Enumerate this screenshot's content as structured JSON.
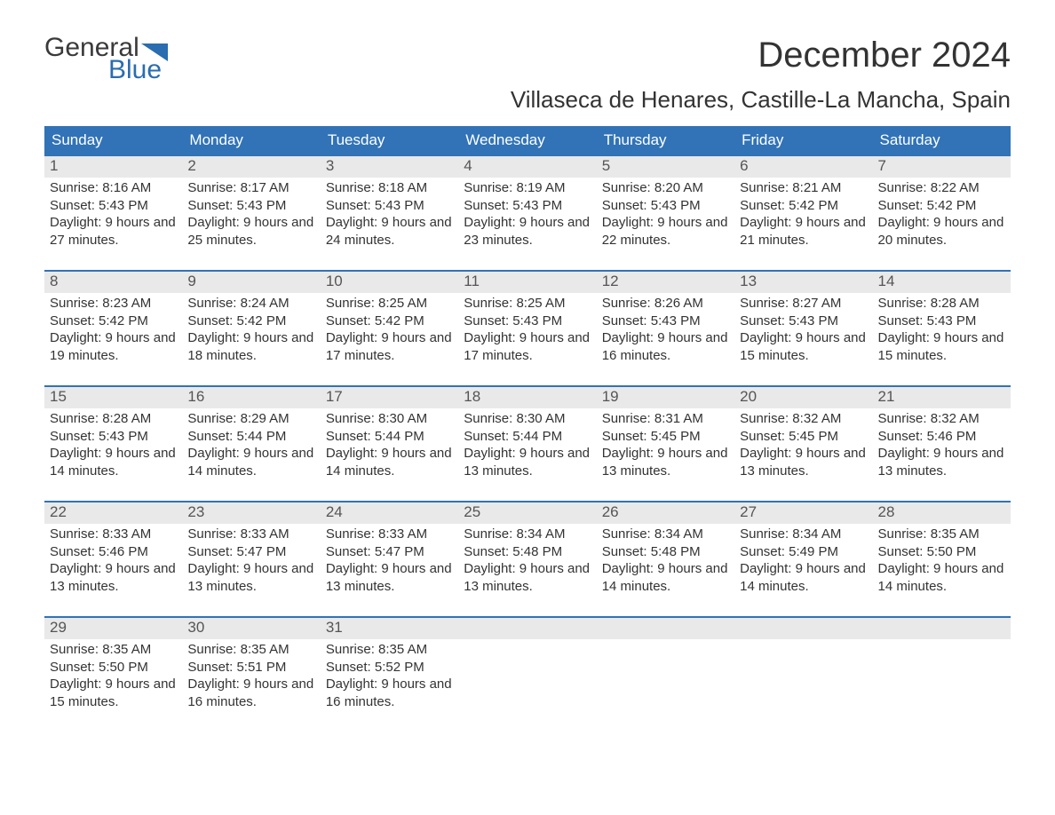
{
  "logo": {
    "text_top": "General",
    "text_bottom": "Blue"
  },
  "colors": {
    "header_bg": "#3173b6",
    "header_text": "#ffffff",
    "day_num_bg": "#e9e9e9",
    "logo_gray": "#3a3a3a",
    "logo_blue": "#2a6db0",
    "row_border": "#3173b6"
  },
  "title": "December 2024",
  "location": "Villaseca de Henares, Castille-La Mancha, Spain",
  "weekdays": [
    "Sunday",
    "Monday",
    "Tuesday",
    "Wednesday",
    "Thursday",
    "Friday",
    "Saturday"
  ],
  "weeks": [
    [
      {
        "n": "1",
        "sunrise": "Sunrise: 8:16 AM",
        "sunset": "Sunset: 5:43 PM",
        "daylight": "Daylight: 9 hours and 27 minutes."
      },
      {
        "n": "2",
        "sunrise": "Sunrise: 8:17 AM",
        "sunset": "Sunset: 5:43 PM",
        "daylight": "Daylight: 9 hours and 25 minutes."
      },
      {
        "n": "3",
        "sunrise": "Sunrise: 8:18 AM",
        "sunset": "Sunset: 5:43 PM",
        "daylight": "Daylight: 9 hours and 24 minutes."
      },
      {
        "n": "4",
        "sunrise": "Sunrise: 8:19 AM",
        "sunset": "Sunset: 5:43 PM",
        "daylight": "Daylight: 9 hours and 23 minutes."
      },
      {
        "n": "5",
        "sunrise": "Sunrise: 8:20 AM",
        "sunset": "Sunset: 5:43 PM",
        "daylight": "Daylight: 9 hours and 22 minutes."
      },
      {
        "n": "6",
        "sunrise": "Sunrise: 8:21 AM",
        "sunset": "Sunset: 5:42 PM",
        "daylight": "Daylight: 9 hours and 21 minutes."
      },
      {
        "n": "7",
        "sunrise": "Sunrise: 8:22 AM",
        "sunset": "Sunset: 5:42 PM",
        "daylight": "Daylight: 9 hours and 20 minutes."
      }
    ],
    [
      {
        "n": "8",
        "sunrise": "Sunrise: 8:23 AM",
        "sunset": "Sunset: 5:42 PM",
        "daylight": "Daylight: 9 hours and 19 minutes."
      },
      {
        "n": "9",
        "sunrise": "Sunrise: 8:24 AM",
        "sunset": "Sunset: 5:42 PM",
        "daylight": "Daylight: 9 hours and 18 minutes."
      },
      {
        "n": "10",
        "sunrise": "Sunrise: 8:25 AM",
        "sunset": "Sunset: 5:42 PM",
        "daylight": "Daylight: 9 hours and 17 minutes."
      },
      {
        "n": "11",
        "sunrise": "Sunrise: 8:25 AM",
        "sunset": "Sunset: 5:43 PM",
        "daylight": "Daylight: 9 hours and 17 minutes."
      },
      {
        "n": "12",
        "sunrise": "Sunrise: 8:26 AM",
        "sunset": "Sunset: 5:43 PM",
        "daylight": "Daylight: 9 hours and 16 minutes."
      },
      {
        "n": "13",
        "sunrise": "Sunrise: 8:27 AM",
        "sunset": "Sunset: 5:43 PM",
        "daylight": "Daylight: 9 hours and 15 minutes."
      },
      {
        "n": "14",
        "sunrise": "Sunrise: 8:28 AM",
        "sunset": "Sunset: 5:43 PM",
        "daylight": "Daylight: 9 hours and 15 minutes."
      }
    ],
    [
      {
        "n": "15",
        "sunrise": "Sunrise: 8:28 AM",
        "sunset": "Sunset: 5:43 PM",
        "daylight": "Daylight: 9 hours and 14 minutes."
      },
      {
        "n": "16",
        "sunrise": "Sunrise: 8:29 AM",
        "sunset": "Sunset: 5:44 PM",
        "daylight": "Daylight: 9 hours and 14 minutes."
      },
      {
        "n": "17",
        "sunrise": "Sunrise: 8:30 AM",
        "sunset": "Sunset: 5:44 PM",
        "daylight": "Daylight: 9 hours and 14 minutes."
      },
      {
        "n": "18",
        "sunrise": "Sunrise: 8:30 AM",
        "sunset": "Sunset: 5:44 PM",
        "daylight": "Daylight: 9 hours and 13 minutes."
      },
      {
        "n": "19",
        "sunrise": "Sunrise: 8:31 AM",
        "sunset": "Sunset: 5:45 PM",
        "daylight": "Daylight: 9 hours and 13 minutes."
      },
      {
        "n": "20",
        "sunrise": "Sunrise: 8:32 AM",
        "sunset": "Sunset: 5:45 PM",
        "daylight": "Daylight: 9 hours and 13 minutes."
      },
      {
        "n": "21",
        "sunrise": "Sunrise: 8:32 AM",
        "sunset": "Sunset: 5:46 PM",
        "daylight": "Daylight: 9 hours and 13 minutes."
      }
    ],
    [
      {
        "n": "22",
        "sunrise": "Sunrise: 8:33 AM",
        "sunset": "Sunset: 5:46 PM",
        "daylight": "Daylight: 9 hours and 13 minutes."
      },
      {
        "n": "23",
        "sunrise": "Sunrise: 8:33 AM",
        "sunset": "Sunset: 5:47 PM",
        "daylight": "Daylight: 9 hours and 13 minutes."
      },
      {
        "n": "24",
        "sunrise": "Sunrise: 8:33 AM",
        "sunset": "Sunset: 5:47 PM",
        "daylight": "Daylight: 9 hours and 13 minutes."
      },
      {
        "n": "25",
        "sunrise": "Sunrise: 8:34 AM",
        "sunset": "Sunset: 5:48 PM",
        "daylight": "Daylight: 9 hours and 13 minutes."
      },
      {
        "n": "26",
        "sunrise": "Sunrise: 8:34 AM",
        "sunset": "Sunset: 5:48 PM",
        "daylight": "Daylight: 9 hours and 14 minutes."
      },
      {
        "n": "27",
        "sunrise": "Sunrise: 8:34 AM",
        "sunset": "Sunset: 5:49 PM",
        "daylight": "Daylight: 9 hours and 14 minutes."
      },
      {
        "n": "28",
        "sunrise": "Sunrise: 8:35 AM",
        "sunset": "Sunset: 5:50 PM",
        "daylight": "Daylight: 9 hours and 14 minutes."
      }
    ],
    [
      {
        "n": "29",
        "sunrise": "Sunrise: 8:35 AM",
        "sunset": "Sunset: 5:50 PM",
        "daylight": "Daylight: 9 hours and 15 minutes."
      },
      {
        "n": "30",
        "sunrise": "Sunrise: 8:35 AM",
        "sunset": "Sunset: 5:51 PM",
        "daylight": "Daylight: 9 hours and 16 minutes."
      },
      {
        "n": "31",
        "sunrise": "Sunrise: 8:35 AM",
        "sunset": "Sunset: 5:52 PM",
        "daylight": "Daylight: 9 hours and 16 minutes."
      },
      {
        "empty": true
      },
      {
        "empty": true
      },
      {
        "empty": true
      },
      {
        "empty": true
      }
    ]
  ]
}
